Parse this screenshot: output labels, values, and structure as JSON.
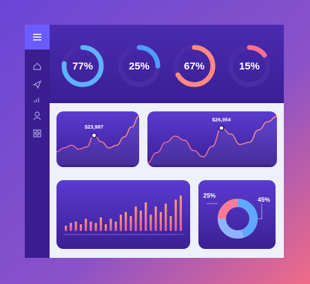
{
  "gauges": {
    "values": [
      77,
      25,
      67,
      15
    ],
    "value_labels": [
      "77%",
      "25%",
      "67%",
      "15%"
    ],
    "colors": [
      "#5fb2ff",
      "#4f9cff",
      "#ff8a80",
      "#ff6f91"
    ]
  },
  "line_cards": [
    {
      "values": [
        19000,
        20200,
        21000,
        19800,
        20500,
        23987,
        22000,
        20200,
        21000,
        23500,
        26500,
        29800
      ],
      "value_labels": [
        null,
        null,
        null,
        null,
        null,
        "$23,987",
        null,
        null,
        null,
        null,
        null,
        null
      ],
      "ylim": [
        15000,
        30000
      ]
    },
    {
      "values": [
        18500,
        21000,
        23500,
        25000,
        24000,
        21500,
        20000,
        22500,
        26954,
        25500,
        23000,
        23500,
        26500,
        28500,
        29800
      ],
      "value_labels": [
        null,
        null,
        null,
        null,
        null,
        null,
        null,
        null,
        "$26,954",
        null,
        null,
        null,
        null,
        null,
        null
      ],
      "ylim": [
        18000,
        30000
      ]
    }
  ],
  "bar_card": {
    "values": [
      8,
      12,
      14,
      10,
      18,
      14,
      12,
      20,
      10,
      18,
      14,
      24,
      28,
      22,
      36,
      30,
      42,
      24,
      36,
      28,
      40,
      22,
      46,
      52
    ],
    "ylim": [
      0,
      60
    ]
  },
  "donut": {
    "values": [
      25,
      45
    ],
    "value_labels": [
      "25%",
      "45%"
    ],
    "colors": [
      "#ff7a9a",
      "#5ea8ff"
    ]
  }
}
